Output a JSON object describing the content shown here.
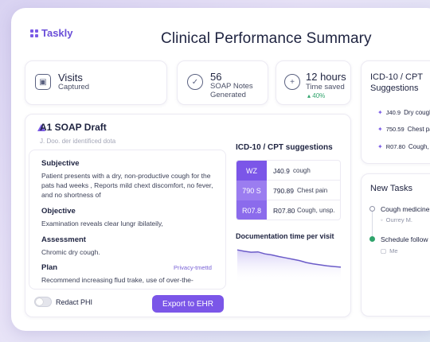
{
  "app": {
    "logo": "Taskly",
    "title": "Clinical Performance Summary"
  },
  "stats": [
    {
      "icon": "camera-icon",
      "big": "Visits",
      "small": "Captured"
    },
    {
      "icon": "check-circle-icon",
      "big": "56",
      "small": "SOAP Notes Generated"
    },
    {
      "icon": "plus-circle-icon",
      "big": "12 hours",
      "small": "Time saved",
      "trend": "▴ 40%"
    }
  ],
  "soap": {
    "title": "A1 SOAP Draft",
    "subtitle": "J. Doo. der identificed dota",
    "sections": [
      {
        "heading": "Subjective",
        "text": "Patient presents  with a dry, non-productive cough for the pats had weeks , Reports mild chext discomfort, no fever, and no shortness of"
      },
      {
        "heading": "Objective",
        "text": "Examination reveals clear lungr ibilateily,"
      },
      {
        "heading": "Assessment",
        "text": "Chromic dry cough."
      },
      {
        "heading": "Plan",
        "text": "Recommend increasing flud trake, use of over-the-"
      }
    ],
    "privacy_tag": "Privacy-tmettd",
    "redact_label": "Redact PHI",
    "redact_on": false,
    "export_label": "Export to EHR"
  },
  "icd": {
    "title": "ICD-10 / CPT suggestions",
    "rows": [
      {
        "badge": "WZ",
        "code": "J40.9",
        "desc": "cough",
        "color": "#7b56e8"
      },
      {
        "badge": "790 S",
        "code": "790.89",
        "desc": "Chest pain",
        "color": "#9b7df0"
      },
      {
        "badge": "R07.8",
        "code": "R07.80",
        "desc": "Cough, unsp.",
        "color": "#8b6bec"
      }
    ]
  },
  "doc_time": {
    "title": "Documentation time per visit"
  },
  "chart_data": {
    "type": "area",
    "title": "Documentation time per visit",
    "xlabel": "",
    "ylabel": "",
    "values": [
      100,
      96,
      93,
      94,
      88,
      85,
      80,
      76,
      72,
      68,
      62,
      58,
      55,
      52,
      50,
      48
    ],
    "ylim": [
      0,
      110
    ],
    "grid": false,
    "color": "#6b5bc8"
  },
  "side_icd": {
    "title": "ICD-10 / CPT Suggestions",
    "rows": [
      {
        "code": "J40.9",
        "desc": "Dry cough"
      },
      {
        "code": "750.59",
        "desc": "Chest pain"
      },
      {
        "code": "R07.80",
        "desc": "Cough, unsp"
      }
    ]
  },
  "tasks": {
    "title": "New Tasks",
    "items": [
      {
        "label": "Cough medicine",
        "meta": "Ourrey M.",
        "status_color": "#ffffff"
      },
      {
        "label": "Schedule follow",
        "meta": "Me",
        "status_color": "#2fa36b"
      }
    ]
  }
}
